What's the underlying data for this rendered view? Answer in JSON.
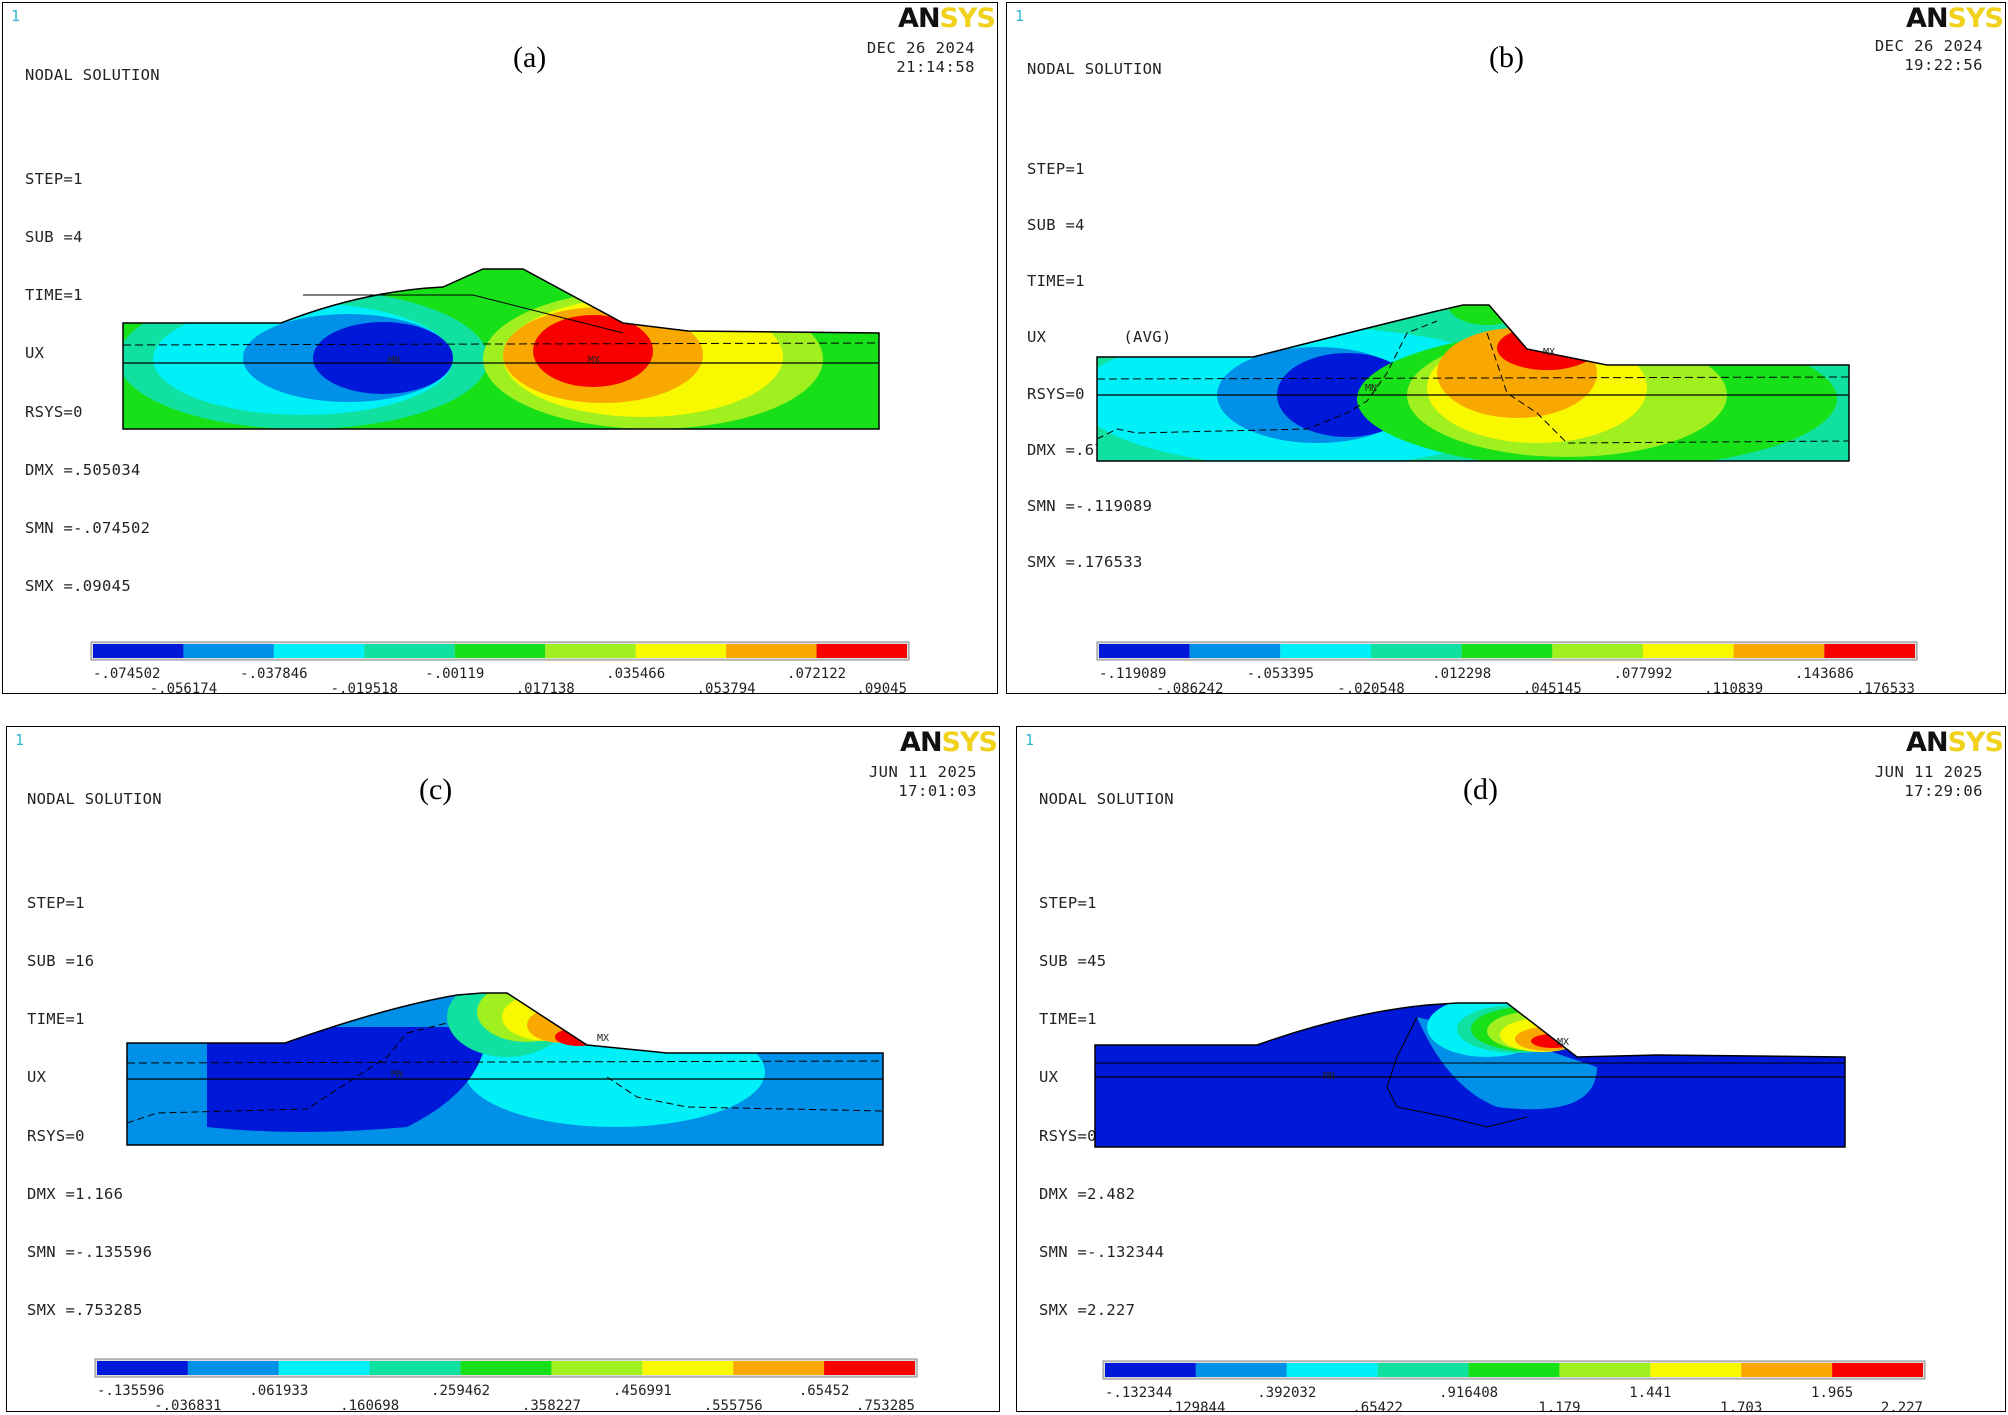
{
  "palette": [
    "#0018d8",
    "#0090e8",
    "#00f0f8",
    "#10e0a0",
    "#18e018",
    "#a0f020",
    "#f8f800",
    "#f8a800",
    "#f80000"
  ],
  "panels": [
    {
      "id": "a",
      "window_number": "1",
      "label": "(a)",
      "title": "NODAL SOLUTION",
      "step": "STEP=1",
      "sub": "SUB =4",
      "time": "TIME=1",
      "item": "UX        (AVG)",
      "rsys": "RSYS=0",
      "dmx": "DMX =.505034",
      "smn": "SMN =-.074502",
      "smx": "SMX =.09045",
      "date": "DEC 26 2024",
      "clock": "21:14:58",
      "logo_an": "AN",
      "logo_sys": "SYS",
      "legend_top": [
        "-.074502",
        "-.037846",
        "-.00119",
        ".035466",
        ".072122"
      ],
      "legend_bottom": [
        "-.056174",
        "-.019518",
        ".017138",
        ".053794",
        ".09045"
      ]
    },
    {
      "id": "b",
      "window_number": "1",
      "label": "(b)",
      "title": "NODAL SOLUTION",
      "step": "STEP=1",
      "sub": "SUB =4",
      "time": "TIME=1",
      "item": "UX        (AVG)",
      "rsys": "RSYS=0",
      "dmx": "DMX =.670025",
      "smn": "SMN =-.119089",
      "smx": "SMX =.176533",
      "date": "DEC 26 2024",
      "clock": "19:22:56",
      "logo_an": "AN",
      "logo_sys": "SYS",
      "legend_top": [
        "-.119089",
        "-.053395",
        ".012298",
        ".077992",
        ".143686"
      ],
      "legend_bottom": [
        "-.086242",
        "-.020548",
        ".045145",
        ".110839",
        ".176533"
      ]
    },
    {
      "id": "c",
      "window_number": "1",
      "label": "(c)",
      "title": "NODAL SOLUTION",
      "step": "STEP=1",
      "sub": "SUB =16",
      "time": "TIME=1",
      "item": "UX        (AVG)",
      "rsys": "RSYS=0",
      "dmx": "DMX =1.166",
      "smn": "SMN =-.135596",
      "smx": "SMX =.753285",
      "date": "JUN 11 2025",
      "clock": "17:01:03",
      "logo_an": "AN",
      "logo_sys": "SYS",
      "legend_top": [
        "-.135596",
        ".061933",
        ".259462",
        ".456991",
        ".65452"
      ],
      "legend_bottom": [
        "-.036831",
        ".160698",
        ".358227",
        ".555756",
        ".753285"
      ]
    },
    {
      "id": "d",
      "window_number": "1",
      "label": "(d)",
      "title": "NODAL SOLUTION",
      "step": "STEP=1",
      "sub": "SUB =45",
      "time": "TIME=1",
      "item": "UX        (AVG)",
      "rsys": "RSYS=0",
      "dmx": "DMX =2.482",
      "smn": "SMN =-.132344",
      "smx": "SMX =2.227",
      "date": "JUN 11 2025",
      "clock": "17:29:06",
      "logo_an": "AN",
      "logo_sys": "SYS",
      "legend_top": [
        "-.132344",
        ".392032",
        ".916408",
        "1.441",
        "1.965"
      ],
      "legend_bottom": [
        ".129844",
        ".65422",
        "1.179",
        "1.703",
        "2.227"
      ]
    }
  ],
  "markers": {
    "mn": "MN",
    "mx": "MX"
  }
}
